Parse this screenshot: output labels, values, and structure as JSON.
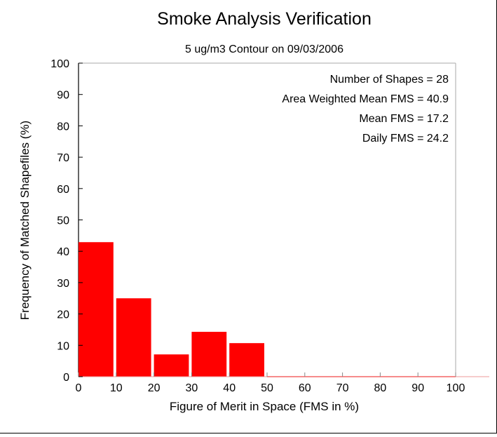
{
  "chart_data": {
    "type": "bar",
    "title": "Smoke Analysis Verification",
    "subtitle": "5 ug/m3 Contour on 09/03/2006",
    "xlabel": "Figure of Merit in Space (FMS in %)",
    "ylabel": "Frequency of Matched Shapefiles (%)",
    "xlim": [
      0,
      100
    ],
    "ylim": [
      0,
      100
    ],
    "x_ticks": [
      "0",
      "10",
      "20",
      "30",
      "40",
      "50",
      "60",
      "70",
      "80",
      "90",
      "100"
    ],
    "y_ticks": [
      "0",
      "10",
      "20",
      "30",
      "40",
      "50",
      "60",
      "70",
      "80",
      "90",
      "100"
    ],
    "bins": [
      {
        "from": 0,
        "to": 10,
        "value": 42.9
      },
      {
        "from": 10,
        "to": 20,
        "value": 25.0
      },
      {
        "from": 20,
        "to": 30,
        "value": 7.1
      },
      {
        "from": 30,
        "to": 40,
        "value": 14.3
      },
      {
        "from": 40,
        "to": 50,
        "value": 10.7
      },
      {
        "from": 50,
        "to": 60,
        "value": 0
      },
      {
        "from": 60,
        "to": 70,
        "value": 0
      },
      {
        "from": 70,
        "to": 80,
        "value": 0
      },
      {
        "from": 80,
        "to": 90,
        "value": 0
      },
      {
        "from": 90,
        "to": 100,
        "value": 0
      }
    ],
    "bar_color": "#ff0000",
    "stats": [
      "Number of Shapes = 28",
      "Area Weighted Mean FMS = 40.9",
      "Mean FMS = 17.2",
      "Daily FMS = 24.2"
    ]
  }
}
